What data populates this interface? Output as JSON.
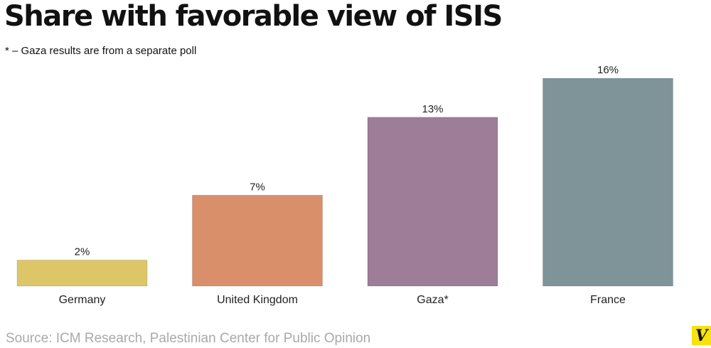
{
  "title": "Share with favorable view of ISIS",
  "subtitle": "* – Gaza results are from a separate poll",
  "source": "Source: ICM Research, Palestinian Center for Public Opinion",
  "logo_text": "V",
  "chart_data": {
    "type": "bar",
    "categories": [
      "Germany",
      "United Kingdom",
      "Gaza*",
      "France"
    ],
    "values": [
      2,
      7,
      13,
      16
    ],
    "value_labels": [
      "2%",
      "7%",
      "13%",
      "16%"
    ],
    "colors": [
      "#dcc667",
      "#d98f69",
      "#9d7d97",
      "#7e9499"
    ],
    "ylim": [
      0,
      16
    ],
    "grid": false,
    "legend": "none"
  }
}
